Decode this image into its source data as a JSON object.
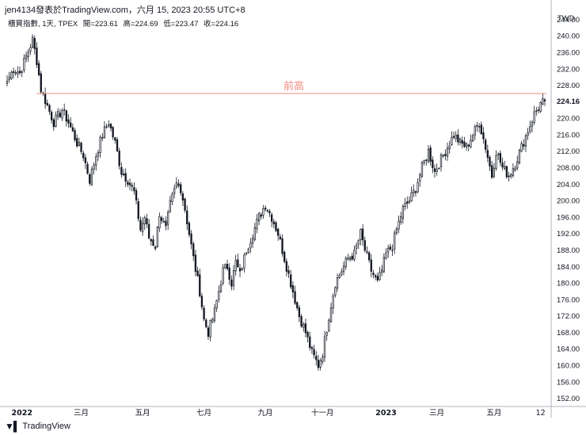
{
  "header": {
    "title": "jen4134發表於TradingView.com，六月 15, 2023 20:55 UTC+8"
  },
  "legend": {
    "symbol": "櫃買指數, 1天, TPEX",
    "open": "開=223.61",
    "high": "高=224.69",
    "low": "低=223.47",
    "close": "收=224.16"
  },
  "footer": {
    "brand": "TradingView",
    "logo_icon": "tradingview-logo-icon"
  },
  "colors": {
    "candle": "#131722",
    "resistance_line": "#f28b82",
    "resistance_text": "#f28b82",
    "price_tag_bg": "#ffffff",
    "axis_text": "#131722"
  },
  "chart_data": {
    "type": "candlestick",
    "currency": "TWD",
    "ylim": [
      150,
      246
    ],
    "y_ticks": [
      152,
      156,
      160,
      164,
      168,
      172,
      176,
      180,
      184,
      188,
      192,
      196,
      200,
      204,
      208,
      212,
      216,
      220,
      228,
      232,
      236,
      240,
      244
    ],
    "y_tick_labels": [
      "152.00",
      "156.00",
      "160.00",
      "164.00",
      "168.00",
      "172.00",
      "176.00",
      "180.00",
      "184.00",
      "188.00",
      "192.00",
      "196.00",
      "200.00",
      "204.00",
      "208.00",
      "212.00",
      "216.00",
      "220.00",
      "228.00",
      "232.00",
      "236.00",
      "240.00",
      "244.00"
    ],
    "last_price": 224.16,
    "last_price_label": "224.16",
    "x_ticks": [
      {
        "label": "2022",
        "index": 7,
        "bold": true
      },
      {
        "label": "三月",
        "index": 35,
        "bold": false
      },
      {
        "label": "五月",
        "index": 64,
        "bold": false
      },
      {
        "label": "七月",
        "index": 93,
        "bold": false
      },
      {
        "label": "九月",
        "index": 122,
        "bold": false
      },
      {
        "label": "十一月",
        "index": 149,
        "bold": false
      },
      {
        "label": "2023",
        "index": 179,
        "bold": true
      },
      {
        "label": "三月",
        "index": 203,
        "bold": false
      },
      {
        "label": "五月",
        "index": 230,
        "bold": false
      },
      {
        "label": "12",
        "index": 252,
        "bold": false
      }
    ],
    "resistance": {
      "value": 226,
      "label": "前高"
    },
    "anchors": [
      [
        0,
        229
      ],
      [
        3,
        232
      ],
      [
        6,
        231
      ],
      [
        9,
        235
      ],
      [
        12,
        239
      ],
      [
        14,
        234
      ],
      [
        16,
        227
      ],
      [
        19,
        223
      ],
      [
        22,
        219
      ],
      [
        26,
        222
      ],
      [
        29,
        219
      ],
      [
        33,
        214
      ],
      [
        36,
        211
      ],
      [
        39,
        205
      ],
      [
        42,
        211
      ],
      [
        45,
        216
      ],
      [
        48,
        219
      ],
      [
        51,
        214
      ],
      [
        54,
        207
      ],
      [
        57,
        205
      ],
      [
        60,
        202
      ],
      [
        63,
        193
      ],
      [
        65,
        196
      ],
      [
        67,
        191
      ],
      [
        70,
        189
      ],
      [
        72,
        197
      ],
      [
        75,
        193
      ],
      [
        77,
        199
      ],
      [
        80,
        204
      ],
      [
        82,
        203
      ],
      [
        84,
        198
      ],
      [
        86,
        192
      ],
      [
        88,
        186
      ],
      [
        91,
        178
      ],
      [
        93,
        171
      ],
      [
        95,
        168
      ],
      [
        98,
        173
      ],
      [
        100,
        178
      ],
      [
        102,
        183
      ],
      [
        104,
        184
      ],
      [
        106,
        180
      ],
      [
        108,
        185
      ],
      [
        110,
        182
      ],
      [
        113,
        188
      ],
      [
        116,
        192
      ],
      [
        119,
        196
      ],
      [
        122,
        199
      ],
      [
        125,
        196
      ],
      [
        128,
        192
      ],
      [
        131,
        186
      ],
      [
        134,
        180
      ],
      [
        136,
        176
      ],
      [
        138,
        172
      ],
      [
        141,
        168
      ],
      [
        144,
        163
      ],
      [
        147,
        160
      ],
      [
        149,
        163
      ],
      [
        152,
        172
      ],
      [
        155,
        180
      ],
      [
        158,
        183
      ],
      [
        161,
        186
      ],
      [
        164,
        187
      ],
      [
        167,
        192
      ],
      [
        169,
        188
      ],
      [
        172,
        183
      ],
      [
        175,
        180
      ],
      [
        177,
        183
      ],
      [
        179,
        187
      ],
      [
        182,
        189
      ],
      [
        184,
        193
      ],
      [
        187,
        198
      ],
      [
        190,
        200
      ],
      [
        193,
        203
      ],
      [
        196,
        208
      ],
      [
        199,
        212
      ],
      [
        202,
        207
      ],
      [
        205,
        210
      ],
      [
        208,
        213
      ],
      [
        211,
        216
      ],
      [
        214,
        214
      ],
      [
        217,
        213
      ],
      [
        220,
        216
      ],
      [
        223,
        219
      ],
      [
        226,
        213
      ],
      [
        229,
        206
      ],
      [
        231,
        212
      ],
      [
        234,
        208
      ],
      [
        237,
        206
      ],
      [
        240,
        209
      ],
      [
        243,
        213
      ],
      [
        246,
        217
      ],
      [
        249,
        221
      ],
      [
        252,
        223.5
      ],
      [
        254,
        224.16
      ]
    ]
  }
}
